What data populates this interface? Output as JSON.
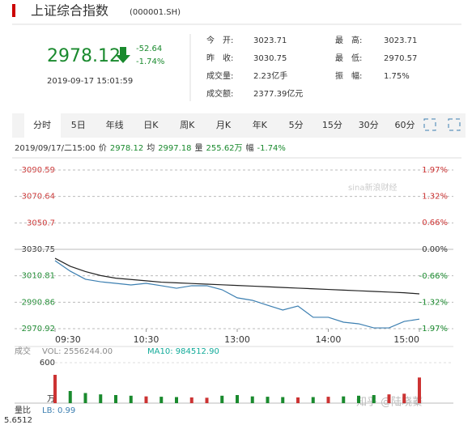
{
  "header": {
    "title": "上证综合指数",
    "code": "(000001.SH)",
    "price": "2978.12",
    "change": "-52.64",
    "change_pct": "-1.74%",
    "datetime": "2019-09-17 15:01:59",
    "stats": [
      {
        "label": "今　开:",
        "value": "3023.71"
      },
      {
        "label": "昨　收:",
        "value": "3030.75"
      },
      {
        "label": "成交量:",
        "value": "2.23亿手"
      },
      {
        "label": "成交额:",
        "value": "2377.39亿元"
      },
      {
        "label": "最　高:",
        "value": "3023.71"
      },
      {
        "label": "最　低:",
        "value": "2970.57"
      },
      {
        "label": "振　幅:",
        "value": "1.75%"
      }
    ]
  },
  "tabs": [
    "分时",
    "5日",
    "年线",
    "日K",
    "周K",
    "月K",
    "年K",
    "5分",
    "15分",
    "30分",
    "60分"
  ],
  "info": [
    "2019/09/17/二15:00",
    "价",
    "2978.12",
    "均",
    "2997.18",
    "量",
    "255.62万",
    "幅",
    "-1.74%"
  ],
  "chart_data": {
    "type": "line",
    "x": [
      0,
      10,
      20,
      30,
      40,
      50,
      60,
      70,
      80,
      90,
      100,
      110,
      120,
      130,
      140,
      150,
      160,
      170,
      180,
      190,
      200,
      210,
      220,
      230,
      240
    ],
    "series": [
      {
        "color": "#3c7fb1",
        "values": [
          3022.2,
          3014.3,
          3008.2,
          3006.3,
          3005.1,
          3003.9,
          3005.1,
          3003.3,
          3001.4,
          3003.3,
          3003.3,
          3000.3,
          2994.2,
          2992.3,
          2988.6,
          2985.0,
          2988.0,
          2979.5,
          2979.5,
          2975.8,
          2974.6,
          2971.5,
          2971.5,
          2976.4,
          2978.12
        ]
      },
      {
        "color": "#222222",
        "values": [
          3024,
          3018,
          3014,
          3011,
          3009,
          3008,
          3007,
          3006,
          3005.5,
          3005,
          3004.5,
          3004,
          3003.5,
          3003,
          3002.5,
          3002,
          3001.5,
          3001,
          3000.5,
          3000,
          2999.5,
          2999,
          2998.5,
          2998,
          2997.18
        ]
      }
    ],
    "xlim": [
      0,
      240
    ],
    "xticks": [
      {
        "value": 0,
        "label": "09:30"
      },
      {
        "value": 60,
        "label": "10:30"
      },
      {
        "value": 120,
        "label": "13:00"
      },
      {
        "value": 180,
        "label": "14:00"
      },
      {
        "value": 240,
        "label": "15:00"
      }
    ],
    "ylim": [
      2970.92,
      3090.59
    ],
    "yticks": [
      3090.59,
      3070.64,
      3050.7,
      3030.75,
      3010.81,
      2990.86,
      2970.92
    ],
    "y2lim": [
      -1.97,
      1.97
    ],
    "y2ticks": [
      {
        "value": 1.97,
        "label": "1.97%"
      },
      {
        "value": 1.32,
        "label": "1.32%"
      },
      {
        "value": 0.66,
        "label": "0.66%"
      },
      {
        "value": 0,
        "label": "0.00%"
      },
      {
        "value": -0.66,
        "label": "-0.66%"
      },
      {
        "value": -1.32,
        "label": "-1.32%"
      },
      {
        "value": -1.97,
        "label": "-1.97%"
      }
    ],
    "grid": true
  },
  "volume": {
    "caption": "成交",
    "vol_label": "VOL: 2556244.00",
    "ma_label": "MA10: 984512.90",
    "unit": "万",
    "values": [
      420,
      180,
      150,
      130,
      120,
      110,
      100,
      95,
      90,
      85,
      80,
      110,
      120,
      100,
      95,
      90,
      85,
      90,
      95,
      100,
      110,
      120,
      130,
      140,
      380
    ],
    "ylim": [
      0,
      600
    ],
    "yticks": [
      600
    ]
  },
  "ratio": {
    "label": "量比",
    "lb": "LB: 0.99",
    "value": "5.6512"
  },
  "watermarks": [
    "sina新浪财经",
    "知乎 @陆晓蓁"
  ]
}
